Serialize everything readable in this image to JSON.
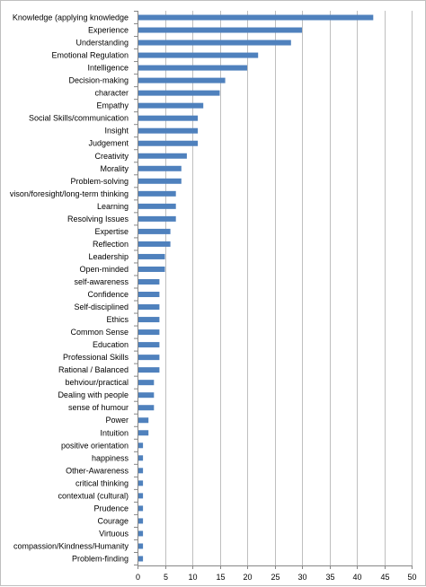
{
  "chart_data": {
    "type": "bar",
    "orientation": "horizontal",
    "categories": [
      "Knowledge (applying knowledge",
      "Experience",
      "Understanding",
      "Emotional Regulation",
      "Intelligence",
      "Decision-making",
      "character",
      "Empathy",
      "Social Skills/communication",
      "Insight",
      "Judgement",
      "Creativity",
      "Morality",
      "Problem-solving",
      "vison/foresight/long-term thinking",
      "Learning",
      "Resolving Issues",
      "Expertise",
      "Reflection",
      "Leadership",
      "Open-minded",
      "self-awareness",
      "Confidence",
      "Self-disciplined",
      "Ethics",
      "Common Sense",
      "Education",
      "Professional Skills",
      "Rational / Balanced",
      "behviour/practical",
      "Dealing with people",
      "sense of humour",
      "Power",
      "Intuition",
      "positive orientation",
      "happiness",
      "Other-Awareness",
      "critical thinking",
      "contextual (cultural)",
      "Prudence",
      "Courage",
      "Virtuous",
      "compassion/Kindness/Humanity",
      "Problem-finding"
    ],
    "values": [
      43,
      30,
      28,
      22,
      20,
      16,
      15,
      12,
      11,
      11,
      11,
      9,
      8,
      8,
      7,
      7,
      7,
      6,
      6,
      5,
      5,
      4,
      4,
      4,
      4,
      4,
      4,
      4,
      4,
      3,
      3,
      3,
      2,
      2,
      1,
      1,
      1,
      1,
      1,
      1,
      1,
      1,
      1,
      1
    ],
    "xlim": [
      0,
      50
    ],
    "xticks": [
      "0",
      "5",
      "10",
      "15",
      "20",
      "25",
      "30",
      "35",
      "40",
      "45",
      "50"
    ],
    "grid": "vertical",
    "bar_color": "#4f81bd",
    "grid_color": "#bfbfbf",
    "title": "",
    "xlabel": "",
    "ylabel": ""
  }
}
